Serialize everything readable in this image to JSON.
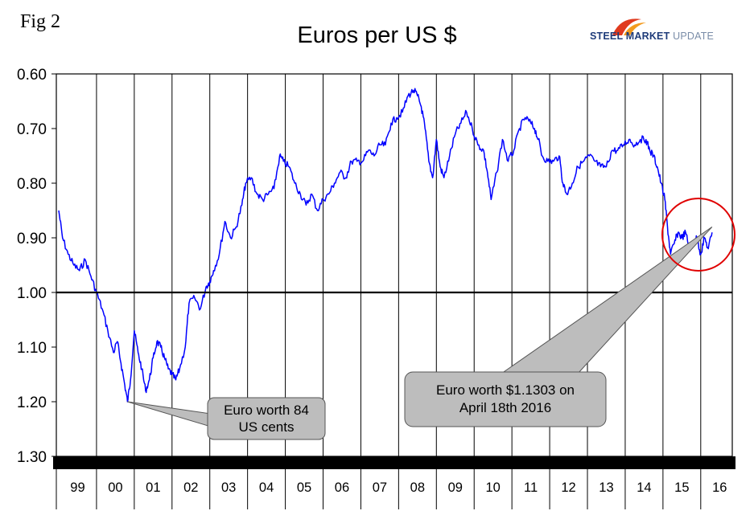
{
  "figure_label": "Fig 2",
  "logo": {
    "word1": "STEEL",
    "word2": "MARKET",
    "word3": "UPDATE",
    "colors": {
      "swoosh_red": "#e03a1e",
      "swoosh_orange": "#f39a1e",
      "text_blue": "#1f3c7a",
      "text_grey": "#7a8da8"
    }
  },
  "colors": {
    "line": "#0000ff",
    "axis": "#000000",
    "grid": "#000000",
    "highlight_circle": "#e00000",
    "callout_fill": "#bdbdbd"
  },
  "chart_data": {
    "type": "line",
    "title": "Euros per US $",
    "xlabel": "",
    "ylabel": "",
    "y_inverted": true,
    "ylim": [
      0.6,
      1.3
    ],
    "yticks": [
      "0.60",
      "0.70",
      "0.80",
      "0.90",
      "1.00",
      "1.10",
      "1.20",
      "1.30"
    ],
    "xlim": [
      1999.0,
      2016.75
    ],
    "categories": [
      "99",
      "00",
      "01",
      "02",
      "03",
      "04",
      "05",
      "06",
      "07",
      "08",
      "09",
      "10",
      "11",
      "12",
      "13",
      "14",
      "15",
      "16"
    ],
    "reference_line": 1.0,
    "grid": "vertical lines at year boundaries",
    "series": [
      {
        "x": [
          1999.0,
          1999.1,
          1999.25,
          1999.4,
          1999.55,
          1999.7,
          1999.85,
          2000.0,
          2000.15,
          2000.3,
          2000.45,
          2000.55,
          2000.65,
          2000.75,
          2000.82,
          2000.9,
          2001.0,
          2001.1,
          2001.2,
          2001.3,
          2001.4,
          2001.5,
          2001.6,
          2001.7,
          2001.8,
          2001.9,
          2002.0,
          2002.1,
          2002.2,
          2002.35,
          2002.45,
          2002.6,
          2002.75,
          2002.9,
          2003.0,
          2003.1,
          2003.25,
          2003.4,
          2003.55,
          2003.7,
          2003.85,
          2003.95,
          2004.1,
          2004.25,
          2004.4,
          2004.55,
          2004.7,
          2004.85,
          2004.95,
          2005.1,
          2005.25,
          2005.4,
          2005.55,
          2005.7,
          2005.85,
          2006.0,
          2006.15,
          2006.3,
          2006.45,
          2006.6,
          2006.75,
          2006.9,
          2007.05,
          2007.2,
          2007.35,
          2007.5,
          2007.65,
          2007.8,
          2007.95,
          2008.1,
          2008.25,
          2008.4,
          2008.5,
          2008.6,
          2008.7,
          2008.8,
          2008.9,
          2009.0,
          2009.1,
          2009.2,
          2009.35,
          2009.5,
          2009.65,
          2009.8,
          2009.95,
          2010.1,
          2010.25,
          2010.35,
          2010.45,
          2010.6,
          2010.75,
          2010.9,
          2011.05,
          2011.2,
          2011.35,
          2011.5,
          2011.6,
          2011.7,
          2011.8,
          2011.95,
          2012.1,
          2012.25,
          2012.35,
          2012.45,
          2012.6,
          2012.75,
          2012.9,
          2013.05,
          2013.2,
          2013.35,
          2013.5,
          2013.65,
          2013.8,
          2013.95,
          2014.1,
          2014.25,
          2014.4,
          2014.55,
          2014.65,
          2014.75,
          2014.85,
          2014.95,
          2015.05,
          2015.12,
          2015.2,
          2015.3,
          2015.4,
          2015.5,
          2015.6,
          2015.7,
          2015.8,
          2015.9,
          2016.0,
          2016.1,
          2016.2,
          2016.3
        ],
        "y": [
          0.85,
          0.9,
          0.93,
          0.95,
          0.96,
          0.94,
          0.97,
          1.0,
          1.03,
          1.07,
          1.11,
          1.09,
          1.13,
          1.17,
          1.2,
          1.16,
          1.07,
          1.11,
          1.14,
          1.18,
          1.16,
          1.12,
          1.09,
          1.1,
          1.12,
          1.14,
          1.15,
          1.16,
          1.14,
          1.1,
          1.02,
          1.01,
          1.03,
          0.99,
          0.98,
          0.96,
          0.93,
          0.87,
          0.9,
          0.88,
          0.84,
          0.8,
          0.79,
          0.82,
          0.83,
          0.82,
          0.81,
          0.75,
          0.76,
          0.77,
          0.8,
          0.82,
          0.84,
          0.82,
          0.85,
          0.83,
          0.82,
          0.8,
          0.78,
          0.79,
          0.76,
          0.76,
          0.76,
          0.74,
          0.75,
          0.73,
          0.73,
          0.69,
          0.68,
          0.67,
          0.64,
          0.63,
          0.64,
          0.66,
          0.7,
          0.76,
          0.79,
          0.72,
          0.77,
          0.79,
          0.75,
          0.71,
          0.69,
          0.67,
          0.7,
          0.73,
          0.74,
          0.78,
          0.83,
          0.78,
          0.72,
          0.76,
          0.74,
          0.7,
          0.68,
          0.69,
          0.7,
          0.72,
          0.75,
          0.76,
          0.76,
          0.75,
          0.8,
          0.82,
          0.8,
          0.77,
          0.76,
          0.75,
          0.76,
          0.77,
          0.77,
          0.74,
          0.74,
          0.73,
          0.72,
          0.73,
          0.72,
          0.72,
          0.74,
          0.75,
          0.77,
          0.8,
          0.83,
          0.88,
          0.93,
          0.91,
          0.89,
          0.9,
          0.89,
          0.92,
          0.91,
          0.9,
          0.93,
          0.9,
          0.92,
          0.89
        ]
      }
    ],
    "annotations": [
      {
        "text_lines": [
          "Euro worth 84",
          "US cents"
        ],
        "points_to": {
          "x": 2000.82,
          "y": 1.2
        }
      },
      {
        "text_lines": [
          "Euro worth $1.1303 on",
          "April 18th 2016"
        ],
        "points_to": {
          "x": 2016.3,
          "y": 0.88
        }
      }
    ]
  }
}
